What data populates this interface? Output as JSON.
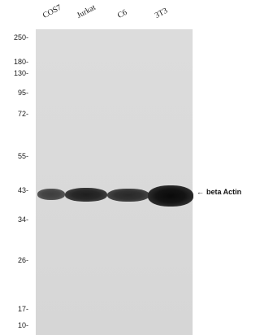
{
  "lanes": [
    "COS7",
    "Jurkat",
    "C6",
    "3T3"
  ],
  "markers": [
    "250-",
    "180-",
    "130-",
    "95-",
    "72-",
    "55-",
    "43-",
    "34-",
    "26-",
    "17-",
    "10-"
  ],
  "target": {
    "arrow": "←",
    "label": "beta Actin"
  },
  "band_intensity": [
    0.75,
    0.9,
    0.85,
    1.0
  ]
}
